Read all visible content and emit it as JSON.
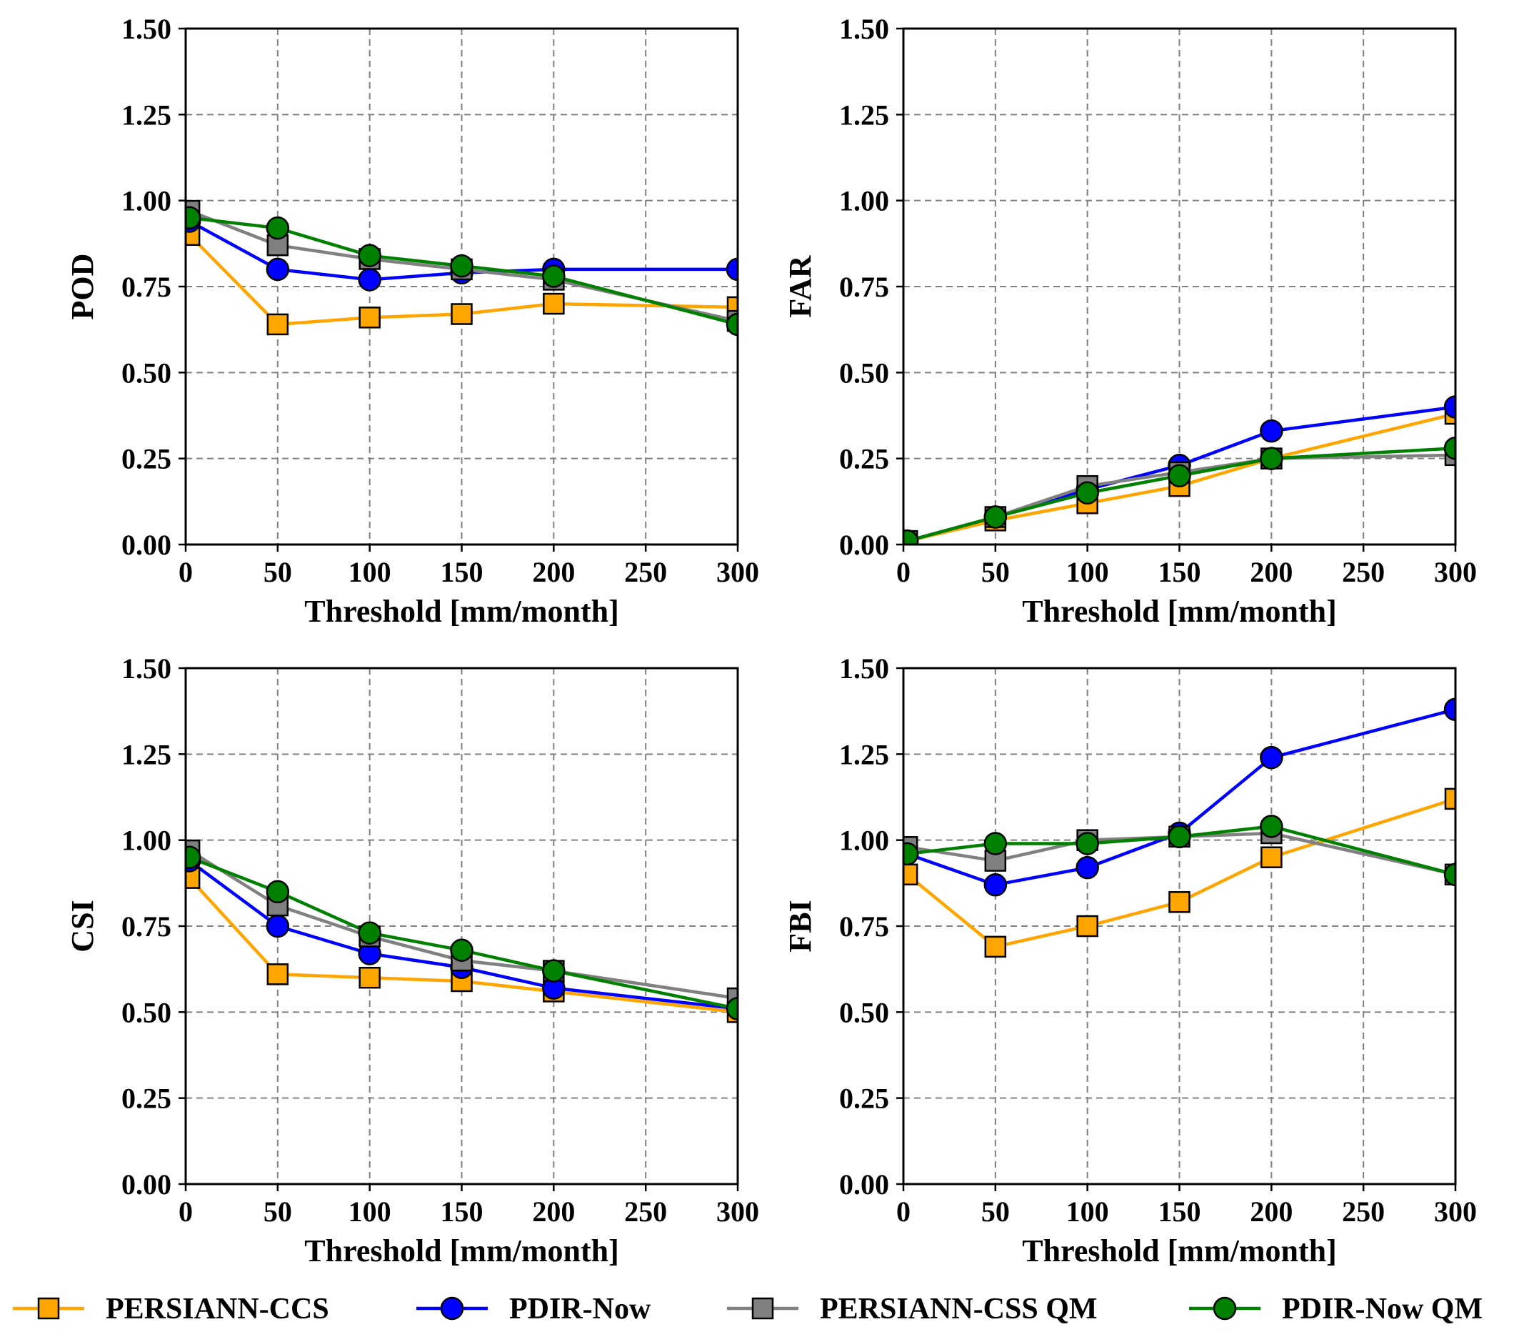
{
  "chart_data": {
    "type": "line",
    "layout": "2x2",
    "series_styles": [
      {
        "name": "PERSIANN-CCS",
        "color": "#FFA500",
        "marker": "square",
        "marker_fill": "#FFA500"
      },
      {
        "name": "PDIR-Now",
        "color": "#0000FF",
        "marker": "circle",
        "marker_fill": "#0000FF"
      },
      {
        "name": "PERSIANN-CSS QM",
        "color": "#808080",
        "marker": "square",
        "marker_fill": "#808080"
      },
      {
        "name": "PDIR-Now QM",
        "color": "#008000",
        "marker": "circle",
        "marker_fill": "#008000"
      }
    ],
    "legend": {
      "placement": "bottom",
      "entries": [
        "PERSIANN-CCS",
        "PDIR-Now",
        "PERSIANN-CSS QM",
        "PDIR-Now QM"
      ]
    },
    "panels": [
      {
        "id": "pod",
        "ylabel": "POD",
        "xlabel": "Threshold [mm/month]",
        "xlim": [
          0,
          300
        ],
        "ylim": [
          0,
          1.5
        ],
        "xticks": [
          0,
          50,
          100,
          150,
          200,
          250,
          300
        ],
        "xtick_labels": [
          "0",
          "50",
          "100",
          "150",
          "200",
          "250",
          "300"
        ],
        "yticks": [
          0,
          0.25,
          0.5,
          0.75,
          1.0,
          1.25,
          1.5
        ],
        "ytick_labels": [
          "0.00",
          "0.25",
          "0.50",
          "0.75",
          "1.00",
          "1.25",
          "1.50"
        ],
        "grid": true,
        "x": [
          2,
          50,
          100,
          150,
          200,
          300
        ],
        "series": [
          {
            "name": "PERSIANN-CCS",
            "values": [
              0.9,
              0.64,
              0.66,
              0.67,
              0.7,
              0.69
            ]
          },
          {
            "name": "PDIR-Now",
            "values": [
              0.94,
              0.8,
              0.77,
              0.79,
              0.8,
              0.8
            ]
          },
          {
            "name": "PERSIANN-CSS QM",
            "values": [
              0.97,
              0.87,
              0.83,
              0.8,
              0.77,
              0.65
            ]
          },
          {
            "name": "PDIR-Now QM",
            "values": [
              0.95,
              0.92,
              0.84,
              0.81,
              0.78,
              0.64
            ]
          }
        ]
      },
      {
        "id": "far",
        "ylabel": "FAR",
        "xlabel": "Threshold [mm/month]",
        "xlim": [
          0,
          300
        ],
        "ylim": [
          0,
          1.5
        ],
        "xticks": [
          0,
          50,
          100,
          150,
          200,
          250,
          300
        ],
        "xtick_labels": [
          "0",
          "50",
          "100",
          "150",
          "200",
          "250",
          "300"
        ],
        "yticks": [
          0,
          0.25,
          0.5,
          0.75,
          1.0,
          1.25,
          1.5
        ],
        "ytick_labels": [
          "0.00",
          "0.25",
          "0.50",
          "0.75",
          "1.00",
          "1.25",
          "1.50"
        ],
        "grid": true,
        "x": [
          2,
          50,
          100,
          150,
          200,
          300
        ],
        "series": [
          {
            "name": "PERSIANN-CCS",
            "values": [
              0.01,
              0.07,
              0.12,
              0.17,
              0.25,
              0.38
            ]
          },
          {
            "name": "PDIR-Now",
            "values": [
              0.01,
              0.08,
              0.16,
              0.23,
              0.33,
              0.4
            ]
          },
          {
            "name": "PERSIANN-CSS QM",
            "values": [
              0.01,
              0.08,
              0.17,
              0.21,
              0.25,
              0.26
            ]
          },
          {
            "name": "PDIR-Now QM",
            "values": [
              0.01,
              0.08,
              0.15,
              0.2,
              0.25,
              0.28
            ]
          }
        ]
      },
      {
        "id": "csi",
        "ylabel": "CSI",
        "xlabel": "Threshold [mm/month]",
        "xlim": [
          0,
          300
        ],
        "ylim": [
          0,
          1.5
        ],
        "xticks": [
          0,
          50,
          100,
          150,
          200,
          250,
          300
        ],
        "xtick_labels": [
          "0",
          "50",
          "100",
          "150",
          "200",
          "250",
          "300"
        ],
        "yticks": [
          0,
          0.25,
          0.5,
          0.75,
          1.0,
          1.25,
          1.5
        ],
        "ytick_labels": [
          "0.00",
          "0.25",
          "0.50",
          "0.75",
          "1.00",
          "1.25",
          "1.50"
        ],
        "grid": true,
        "x": [
          2,
          50,
          100,
          150,
          200,
          300
        ],
        "series": [
          {
            "name": "PERSIANN-CCS",
            "values": [
              0.89,
              0.61,
              0.6,
              0.59,
              0.56,
              0.5
            ]
          },
          {
            "name": "PDIR-Now",
            "values": [
              0.94,
              0.75,
              0.67,
              0.63,
              0.57,
              0.51
            ]
          },
          {
            "name": "PERSIANN-CSS QM",
            "values": [
              0.97,
              0.81,
              0.72,
              0.65,
              0.62,
              0.54
            ]
          },
          {
            "name": "PDIR-Now QM",
            "values": [
              0.95,
              0.85,
              0.73,
              0.68,
              0.62,
              0.51
            ]
          }
        ]
      },
      {
        "id": "fbi",
        "ylabel": "FBI",
        "xlabel": "Threshold [mm/month]",
        "xlim": [
          0,
          300
        ],
        "ylim": [
          0,
          1.5
        ],
        "xticks": [
          0,
          50,
          100,
          150,
          200,
          250,
          300
        ],
        "xtick_labels": [
          "0",
          "50",
          "100",
          "150",
          "200",
          "250",
          "300"
        ],
        "yticks": [
          0,
          0.25,
          0.5,
          0.75,
          1.0,
          1.25,
          1.5
        ],
        "ytick_labels": [
          "0.00",
          "0.25",
          "0.50",
          "0.75",
          "1.00",
          "1.25",
          "1.50"
        ],
        "grid": true,
        "x": [
          2,
          50,
          100,
          150,
          200,
          300
        ],
        "series": [
          {
            "name": "PERSIANN-CCS",
            "values": [
              0.9,
              0.69,
              0.75,
              0.82,
              0.95,
              1.12
            ]
          },
          {
            "name": "PDIR-Now",
            "values": [
              0.96,
              0.87,
              0.92,
              1.02,
              1.24,
              1.38
            ]
          },
          {
            "name": "PERSIANN-CSS QM",
            "values": [
              0.98,
              0.94,
              1.0,
              1.01,
              1.02,
              0.9
            ]
          },
          {
            "name": "PDIR-Now QM",
            "values": [
              0.96,
              0.99,
              0.99,
              1.01,
              1.04,
              0.9
            ]
          }
        ]
      }
    ]
  }
}
